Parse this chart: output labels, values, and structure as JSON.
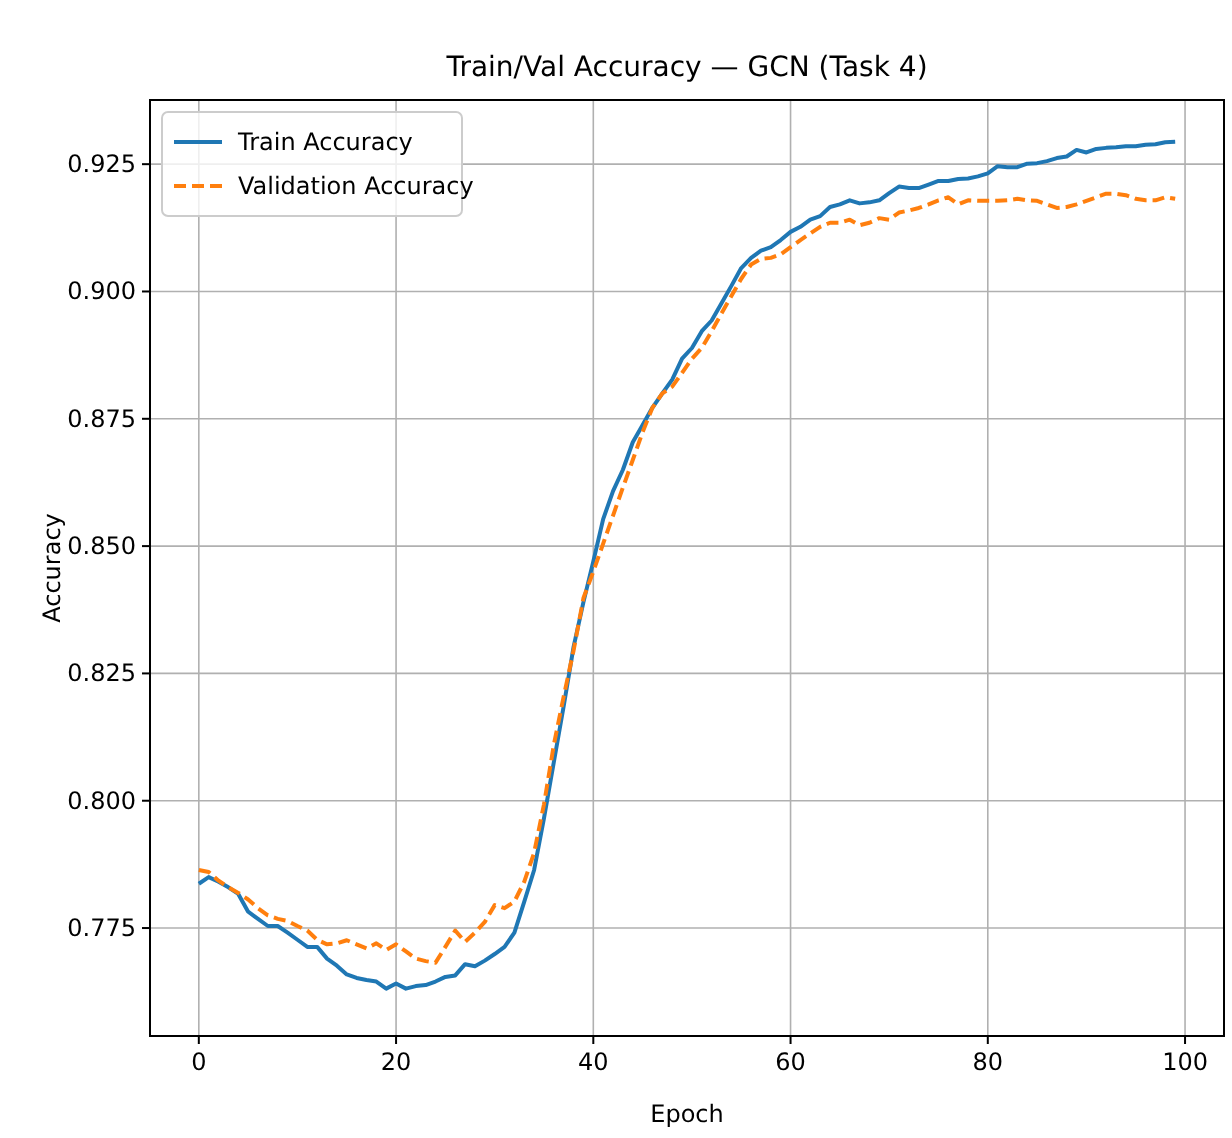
{
  "chart_data": {
    "type": "line",
    "title": "Train/Val Accuracy — GCN (Task 4)",
    "xlabel": "Epoch",
    "ylabel": "Accuracy",
    "x": [
      0,
      1,
      2,
      3,
      4,
      5,
      6,
      7,
      8,
      9,
      10,
      11,
      12,
      13,
      14,
      15,
      16,
      17,
      18,
      19,
      20,
      21,
      22,
      23,
      24,
      25,
      26,
      27,
      28,
      29,
      30,
      31,
      32,
      33,
      34,
      35,
      36,
      37,
      38,
      39,
      40,
      41,
      42,
      43,
      44,
      45,
      46,
      47,
      48,
      49,
      50,
      51,
      52,
      53,
      54,
      55,
      56,
      57,
      58,
      59,
      60,
      61,
      62,
      63,
      64,
      65,
      66,
      67,
      68,
      69,
      70,
      71,
      72,
      73,
      74,
      75,
      76,
      77,
      78,
      79,
      80,
      81,
      82,
      83,
      84,
      85,
      86,
      87,
      88,
      89,
      90,
      91,
      92,
      93,
      94,
      95,
      96,
      97,
      98,
      99
    ],
    "series": [
      {
        "name": "Train Accuracy",
        "color": "#1f77b4",
        "line_style": "solid",
        "values": [
          0.7837,
          0.785,
          0.7841,
          0.783,
          0.7817,
          0.7782,
          0.7768,
          0.7754,
          0.7754,
          0.7741,
          0.7727,
          0.7713,
          0.7713,
          0.769,
          0.7676,
          0.7659,
          0.7652,
          0.7648,
          0.7645,
          0.7631,
          0.7641,
          0.7631,
          0.7636,
          0.7638,
          0.7645,
          0.7654,
          0.7657,
          0.7679,
          0.7675,
          0.7686,
          0.7699,
          0.7713,
          0.7741,
          0.7802,
          0.7864,
          0.7966,
          0.8076,
          0.8186,
          0.8302,
          0.839,
          0.847,
          0.8553,
          0.8608,
          0.865,
          0.8704,
          0.8738,
          0.8772,
          0.88,
          0.8827,
          0.8868,
          0.8889,
          0.8922,
          0.8943,
          0.8977,
          0.9011,
          0.9046,
          0.9066,
          0.908,
          0.9087,
          0.9101,
          0.9117,
          0.9127,
          0.9141,
          0.9148,
          0.9166,
          0.9171,
          0.9179,
          0.9173,
          0.9175,
          0.9179,
          0.9193,
          0.9206,
          0.9203,
          0.9203,
          0.921,
          0.9217,
          0.9217,
          0.9221,
          0.9222,
          0.9226,
          0.9232,
          0.9246,
          0.9244,
          0.9244,
          0.9251,
          0.9252,
          0.9256,
          0.9262,
          0.9265,
          0.9278,
          0.9273,
          0.928,
          0.9282,
          0.9283,
          0.9285,
          0.9285,
          0.9288,
          0.9289,
          0.9293,
          0.9294
        ]
      },
      {
        "name": "Validation Accuracy",
        "color": "#ff7f0e",
        "line_style": "dashed",
        "values": [
          0.7864,
          0.786,
          0.7843,
          0.783,
          0.7819,
          0.7806,
          0.7789,
          0.7775,
          0.7768,
          0.7764,
          0.7754,
          0.7745,
          0.7727,
          0.7718,
          0.772,
          0.7726,
          0.7718,
          0.771,
          0.772,
          0.7707,
          0.7718,
          0.7704,
          0.769,
          0.7685,
          0.7682,
          0.7713,
          0.7745,
          0.7723,
          0.7741,
          0.7762,
          0.7795,
          0.7789,
          0.7802,
          0.7841,
          0.7898,
          0.7993,
          0.811,
          0.8205,
          0.8295,
          0.8398,
          0.845,
          0.8505,
          0.856,
          0.8615,
          0.8669,
          0.8724,
          0.8772,
          0.88,
          0.8813,
          0.884,
          0.8868,
          0.8889,
          0.8922,
          0.8957,
          0.8991,
          0.9025,
          0.9053,
          0.9064,
          0.9066,
          0.9073,
          0.9087,
          0.9101,
          0.9114,
          0.9127,
          0.9135,
          0.9135,
          0.9141,
          0.913,
          0.9135,
          0.9144,
          0.9141,
          0.9155,
          0.9159,
          0.9164,
          0.9171,
          0.9179,
          0.9185,
          0.9171,
          0.9179,
          0.9178,
          0.9178,
          0.9178,
          0.9179,
          0.9182,
          0.9179,
          0.9178,
          0.9171,
          0.9164,
          0.9166,
          0.9171,
          0.9178,
          0.9185,
          0.9192,
          0.9192,
          0.9189,
          0.9182,
          0.9179,
          0.9179,
          0.9185,
          0.9182
        ]
      }
    ],
    "xlim": [
      -4.95,
      103.95
    ],
    "xticks": [
      0,
      20,
      40,
      60,
      80,
      100
    ],
    "ylim": [
      0.7538,
      0.9376
    ],
    "yticks": [
      {
        "value": 0.775,
        "label": "0.775"
      },
      {
        "value": 0.8,
        "label": "0.800"
      },
      {
        "value": 0.825,
        "label": "0.825"
      },
      {
        "value": 0.85,
        "label": "0.850"
      },
      {
        "value": 0.875,
        "label": "0.875"
      },
      {
        "value": 0.9,
        "label": "0.900"
      },
      {
        "value": 0.925,
        "label": "0.925"
      }
    ],
    "grid": true,
    "legend": "top left",
    "marker": "none"
  }
}
